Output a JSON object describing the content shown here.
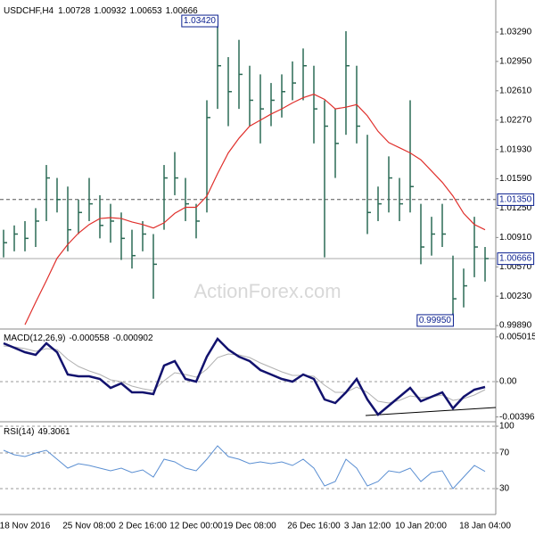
{
  "chart_data": [
    {
      "type": "ohlc",
      "title": "USDCHF,H4",
      "quote": [
        1.00728,
        1.00932,
        1.00653,
        1.00666
      ],
      "color": "#2b6a55",
      "watermark": "ActionForex.com",
      "categories": [
        null,
        null,
        "18 Nov 2016",
        null,
        null,
        null,
        null,
        null,
        "25 Nov 08:00",
        null,
        null,
        null,
        null,
        "2 Dec 16:00",
        null,
        null,
        null,
        null,
        "12 Dec 00:00",
        null,
        null,
        null,
        null,
        "19 Dec 08:00",
        null,
        null,
        null,
        null,
        null,
        "26 Dec 16:00",
        null,
        null,
        null,
        null,
        "3 Jan 12:00",
        null,
        null,
        null,
        null,
        "10 Jan 20:00",
        null,
        null,
        null,
        null,
        null,
        "18 Jan 04:00"
      ],
      "high": [
        1.01,
        1.0105,
        1.011,
        1.0125,
        1.0175,
        1.016,
        1.015,
        1.0135,
        1.016,
        1.014,
        1.013,
        1.012,
        1.01,
        1.011,
        1.0095,
        1.0175,
        1.019,
        1.016,
        1.013,
        1.025,
        1.0342,
        1.03,
        1.032,
        1.029,
        1.028,
        1.027,
        1.028,
        1.0295,
        1.031,
        1.029,
        1.025,
        1.024,
        1.033,
        1.029,
        1.021,
        1.015,
        1.0185,
        1.016,
        1.025,
        1.013,
        1.0115,
        1.013,
        1.007,
        1.0055,
        1.0115,
        1.008
      ],
      "low": [
        1.0068,
        1.0075,
        1.0075,
        1.008,
        1.011,
        1.012,
        1.0075,
        1.0095,
        1.011,
        1.009,
        1.0085,
        1.0065,
        1.0055,
        1.0075,
        1.002,
        1.01,
        1.014,
        1.011,
        1.009,
        1.012,
        1.024,
        1.022,
        1.024,
        1.022,
        1.02,
        1.022,
        1.023,
        1.025,
        1.025,
        1.02,
        1.0068,
        1.016,
        1.021,
        1.02,
        1.0095,
        1.011,
        1.012,
        1.011,
        1.012,
        1.006,
        1.007,
        1.008,
        0.9995,
        1.001,
        1.0045,
        1.004
      ],
      "close": [
        1.0085,
        1.0095,
        1.009,
        1.011,
        1.016,
        1.0135,
        1.01,
        1.012,
        1.013,
        1.0105,
        1.011,
        1.009,
        1.007,
        1.0095,
        1.006,
        1.016,
        1.016,
        1.013,
        1.011,
        1.023,
        1.029,
        1.026,
        1.028,
        1.025,
        1.024,
        1.025,
        1.026,
        1.027,
        1.029,
        1.024,
        1.022,
        1.02,
        1.029,
        1.022,
        1.012,
        1.013,
        1.016,
        1.013,
        1.015,
        1.008,
        1.0095,
        1.0095,
        1.002,
        1.0035,
        1.008,
        1.00666
      ],
      "ma": {
        "color": "#e0302c",
        "values": [
          null,
          null,
          0.999,
          1.0016,
          1.0041,
          1.0067,
          1.0083,
          1.0096,
          1.0106,
          1.0113,
          1.0114,
          1.0113,
          1.0109,
          1.0106,
          1.0102,
          1.0108,
          1.0119,
          1.0126,
          1.0126,
          1.0139,
          1.0165,
          1.0189,
          1.0206,
          1.022,
          1.0227,
          1.0234,
          1.024,
          1.0247,
          1.0253,
          1.0257,
          1.0251,
          1.024,
          1.0242,
          1.0245,
          1.0232,
          1.0214,
          1.0201,
          1.0195,
          1.0189,
          1.0181,
          1.0168,
          1.0155,
          1.0139,
          1.0119,
          1.0106,
          1.01
        ]
      },
      "ylim": [
        0.9986,
        1.0361
      ],
      "yticks": [
        {
          "value": 1.0329,
          "label": "1.03290"
        },
        {
          "value": 1.0295,
          "label": "1.02950"
        },
        {
          "value": 1.0261,
          "label": "1.02610"
        },
        {
          "value": 1.0227,
          "label": "1.02270"
        },
        {
          "value": 1.0193,
          "label": "1.01930"
        },
        {
          "value": 1.0159,
          "label": "1.01590"
        },
        {
          "value": 1.0125,
          "label": "1.01250"
        },
        {
          "value": 1.0091,
          "label": "1.00910"
        },
        {
          "value": 1.0057,
          "label": "1.00570"
        },
        {
          "value": 1.0023,
          "label": "1.00230"
        },
        {
          "value": 0.9989,
          "label": "0.99890"
        }
      ],
      "annotations": [
        {
          "value": 1.0342,
          "label": "1.03420",
          "index": 20
        },
        {
          "value": 0.9995,
          "label": "0.99950",
          "index": 42
        }
      ],
      "level": {
        "value": 1.0135,
        "label": "1.01350"
      },
      "last": {
        "value": 1.00666,
        "label": "1.00666"
      }
    },
    {
      "type": "macd",
      "title": "MACD(12,26,9)",
      "quote": [
        -0.000558,
        -0.000902
      ],
      "series": [
        {
          "name": "MACD",
          "color": "#12126e",
          "values": [
            0.0043,
            0.0038,
            0.0033,
            0.003,
            0.0043,
            0.0033,
            0.0008,
            0.0006,
            0.0006,
            0.0003,
            -0.0007,
            -0.0002,
            -0.0012,
            -0.0012,
            -0.0014,
            0.0018,
            0.0023,
            0.0003,
            0.0,
            0.0028,
            0.0048,
            0.0036,
            0.0028,
            0.0023,
            0.0013,
            0.0008,
            0.0003,
            0.0,
            0.0008,
            0.0003,
            -0.002,
            -0.0024,
            -0.0012,
            0.0003,
            -0.002,
            -0.0037,
            -0.0027,
            -0.0017,
            -0.0007,
            -0.0022,
            -0.0017,
            -0.0012,
            -0.003,
            -0.0017,
            -0.0009,
            -0.0006
          ]
        },
        {
          "name": "Signal",
          "color": "#b0b0b0",
          "values": [
            0.004,
            0.0039,
            0.0037,
            0.0034,
            0.0037,
            0.0036,
            0.0025,
            0.0017,
            0.0012,
            0.0008,
            0.0002,
            0.0,
            -0.0005,
            -0.0008,
            -0.001,
            0.0001,
            0.001,
            0.0008,
            0.0005,
            0.0014,
            0.0027,
            0.0031,
            0.003,
            0.0027,
            0.0021,
            0.0016,
            0.0011,
            0.0007,
            0.0007,
            0.0006,
            -0.0004,
            -0.0012,
            -0.0012,
            -0.0006,
            -0.0012,
            -0.0022,
            -0.0024,
            -0.0021,
            -0.0016,
            -0.0018,
            -0.0017,
            -0.0015,
            -0.0021,
            -0.0019,
            -0.0015,
            -0.0009
          ]
        }
      ],
      "ylim": [
        -0.0044,
        0.0058
      ],
      "yticks": [
        0.005015,
        {
          "value": 0,
          "label": "0.00"
        },
        -0.003963
      ]
    },
    {
      "type": "rsi",
      "title": "RSI(14)",
      "quote": [
        49.3061
      ],
      "color": "#5b8fd2",
      "values": [
        73,
        68,
        66,
        70,
        73,
        63,
        53,
        58,
        56,
        53,
        50,
        53,
        48,
        51,
        43,
        63,
        60,
        53,
        50,
        63,
        78,
        66,
        63,
        58,
        60,
        58,
        60,
        56,
        63,
        53,
        33,
        38,
        63,
        53,
        33,
        38,
        50,
        48,
        53,
        38,
        48,
        50,
        30,
        43,
        56,
        49.3061
      ],
      "ylim": [
        3,
        104
      ],
      "yticks": [
        100,
        70,
        30
      ]
    }
  ]
}
